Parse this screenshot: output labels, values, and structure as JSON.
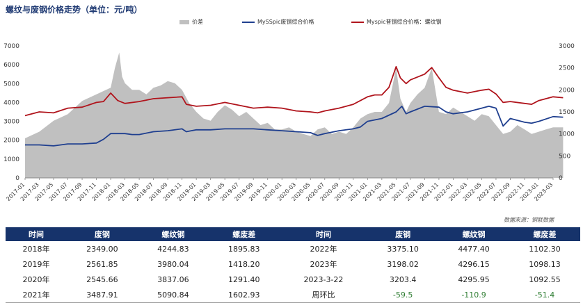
{
  "title": "螺纹与废钢价格走势（单位：元/吨）",
  "legend": [
    {
      "label": "价差",
      "color": "#c0c0c0",
      "kind": "area"
    },
    {
      "label": "MySSpic废钢综合价格",
      "color": "#1f3f8f",
      "kind": "line"
    },
    {
      "label": "Myspic普钢综合价格：螺纹钢",
      "color": "#b0141c",
      "kind": "line"
    }
  ],
  "source": "数据来源：钢联数据",
  "chart_data": {
    "type": "line",
    "x_tick_labels": [
      "2017-01",
      "2017-03",
      "2017-05",
      "2017-07",
      "2017-09",
      "2017-11",
      "2018-01",
      "2018-03",
      "2018-05",
      "2018-07",
      "2018-09",
      "2018-11",
      "2019-01",
      "2019-03",
      "2019-05",
      "2019-07",
      "2019-09",
      "2019-11",
      "2020-01",
      "2020-03",
      "2020-05",
      "2020-07",
      "2020-09",
      "2020-11",
      "2021-01",
      "2021-03",
      "2021-05",
      "2021-07",
      "2021-09",
      "2021-11",
      "2022-01",
      "2022-03",
      "2022-05",
      "2022-07",
      "2022-09",
      "2022-11",
      "2023-01",
      "2023-03"
    ],
    "left_axis": {
      "min": 0,
      "max": 7000,
      "ticks": [
        0,
        1000,
        2000,
        3000,
        4000,
        5000,
        6000,
        7000
      ]
    },
    "right_axis": {
      "min": 0,
      "max": 3000,
      "ticks": [
        0,
        500,
        1000,
        1500,
        2000,
        2500,
        3000
      ]
    },
    "grid": false,
    "series": [
      {
        "name": "价差",
        "type": "area",
        "axis": "right",
        "color": "#c0c0c0",
        "points": [
          [
            0,
            900
          ],
          [
            1,
            1050
          ],
          [
            2,
            1300
          ],
          [
            3,
            1450
          ],
          [
            4,
            1750
          ],
          [
            5,
            1900
          ],
          [
            6,
            2050
          ],
          [
            6.3,
            2500
          ],
          [
            6.6,
            2850
          ],
          [
            6.8,
            2300
          ],
          [
            7,
            2150
          ],
          [
            7.5,
            2000
          ],
          [
            8,
            2000
          ],
          [
            8.5,
            1900
          ],
          [
            9,
            2050
          ],
          [
            9.5,
            2100
          ],
          [
            10,
            2200
          ],
          [
            10.5,
            2150
          ],
          [
            11,
            2000
          ],
          [
            11.5,
            1700
          ],
          [
            12,
            1500
          ],
          [
            12.5,
            1350
          ],
          [
            13,
            1300
          ],
          [
            13.5,
            1500
          ],
          [
            14,
            1650
          ],
          [
            14.5,
            1550
          ],
          [
            15,
            1400
          ],
          [
            15.5,
            1500
          ],
          [
            16,
            1350
          ],
          [
            16.5,
            1200
          ],
          [
            17,
            1250
          ],
          [
            17.5,
            1100
          ],
          [
            18,
            1100
          ],
          [
            18.5,
            1150
          ],
          [
            19,
            1050
          ],
          [
            19.5,
            1000
          ],
          [
            20,
            950
          ],
          [
            20.5,
            1100
          ],
          [
            21,
            1150
          ],
          [
            21.5,
            1000
          ],
          [
            22,
            1050
          ],
          [
            22.5,
            1000
          ],
          [
            23,
            1150
          ],
          [
            23.5,
            1350
          ],
          [
            24,
            1450
          ],
          [
            24.5,
            1500
          ],
          [
            25,
            1500
          ],
          [
            25.5,
            1700
          ],
          [
            26,
            2500
          ],
          [
            26.3,
            1800
          ],
          [
            26.7,
            1500
          ],
          [
            27,
            1700
          ],
          [
            27.5,
            1900
          ],
          [
            28,
            2050
          ],
          [
            28.5,
            2500
          ],
          [
            29,
            1500
          ],
          [
            29.5,
            1450
          ],
          [
            30,
            1600
          ],
          [
            30.5,
            1500
          ],
          [
            31,
            1400
          ],
          [
            31.5,
            1300
          ],
          [
            32,
            1450
          ],
          [
            32.5,
            1400
          ],
          [
            33,
            1200
          ],
          [
            33.5,
            1000
          ],
          [
            34,
            1050
          ],
          [
            34.5,
            1200
          ],
          [
            35,
            1100
          ],
          [
            35.5,
            1000
          ],
          [
            36,
            1050
          ],
          [
            36.5,
            1100
          ],
          [
            37,
            1150
          ],
          [
            37.7,
            1150
          ]
        ]
      },
      {
        "name": "MySSpic废钢综合价格",
        "type": "line",
        "axis": "left",
        "color": "#1f3f8f",
        "points": [
          [
            0,
            1750
          ],
          [
            1,
            1750
          ],
          [
            2,
            1700
          ],
          [
            3,
            1800
          ],
          [
            4,
            1800
          ],
          [
            5,
            1850
          ],
          [
            5.5,
            2050
          ],
          [
            6,
            2350
          ],
          [
            7,
            2350
          ],
          [
            7.5,
            2300
          ],
          [
            8,
            2300
          ],
          [
            9,
            2450
          ],
          [
            10,
            2500
          ],
          [
            11,
            2600
          ],
          [
            11.3,
            2450
          ],
          [
            12,
            2550
          ],
          [
            13,
            2550
          ],
          [
            14,
            2600
          ],
          [
            15,
            2600
          ],
          [
            16,
            2600
          ],
          [
            17,
            2550
          ],
          [
            18,
            2500
          ],
          [
            19,
            2450
          ],
          [
            20,
            2400
          ],
          [
            20.5,
            2250
          ],
          [
            21,
            2350
          ],
          [
            22,
            2500
          ],
          [
            23,
            2600
          ],
          [
            23.5,
            2700
          ],
          [
            24,
            3000
          ],
          [
            25,
            3150
          ],
          [
            26,
            3500
          ],
          [
            26.4,
            3800
          ],
          [
            26.7,
            3400
          ],
          [
            27,
            3500
          ],
          [
            28,
            3800
          ],
          [
            29,
            3750
          ],
          [
            29.5,
            3500
          ],
          [
            30,
            3400
          ],
          [
            31,
            3500
          ],
          [
            32,
            3700
          ],
          [
            32.5,
            3800
          ],
          [
            33,
            3700
          ],
          [
            33.5,
            2750
          ],
          [
            34,
            3150
          ],
          [
            35,
            2950
          ],
          [
            35.5,
            2900
          ],
          [
            36,
            3000
          ],
          [
            37,
            3250
          ],
          [
            37.7,
            3220
          ]
        ]
      },
      {
        "name": "Myspic普钢综合价格：螺纹钢",
        "type": "line",
        "axis": "left",
        "color": "#b0141c",
        "points": [
          [
            0,
            3300
          ],
          [
            1,
            3500
          ],
          [
            2,
            3450
          ],
          [
            3,
            3700
          ],
          [
            4,
            3750
          ],
          [
            5,
            4000
          ],
          [
            5.5,
            4050
          ],
          [
            6,
            4500
          ],
          [
            6.5,
            4100
          ],
          [
            7,
            3950
          ],
          [
            8,
            4050
          ],
          [
            9,
            4200
          ],
          [
            10,
            4250
          ],
          [
            11,
            4300
          ],
          [
            11.3,
            3900
          ],
          [
            12,
            3800
          ],
          [
            13,
            3850
          ],
          [
            14,
            4000
          ],
          [
            15,
            3850
          ],
          [
            16,
            3700
          ],
          [
            17,
            3750
          ],
          [
            18,
            3700
          ],
          [
            19,
            3550
          ],
          [
            20,
            3500
          ],
          [
            20.5,
            3450
          ],
          [
            21,
            3550
          ],
          [
            22,
            3700
          ],
          [
            23,
            3900
          ],
          [
            24,
            4300
          ],
          [
            24.5,
            4400
          ],
          [
            25,
            4400
          ],
          [
            25.5,
            4800
          ],
          [
            26,
            5900
          ],
          [
            26.3,
            5300
          ],
          [
            26.7,
            5000
          ],
          [
            27,
            5200
          ],
          [
            28,
            5500
          ],
          [
            28.5,
            5850
          ],
          [
            29,
            5300
          ],
          [
            29.5,
            4800
          ],
          [
            30,
            4650
          ],
          [
            31,
            4500
          ],
          [
            32,
            4650
          ],
          [
            32.5,
            4700
          ],
          [
            33,
            4450
          ],
          [
            33.5,
            4000
          ],
          [
            34,
            4050
          ],
          [
            35,
            3950
          ],
          [
            35.5,
            3900
          ],
          [
            36,
            4100
          ],
          [
            37,
            4300
          ],
          [
            37.7,
            4250
          ]
        ]
      }
    ]
  },
  "table": {
    "headers": [
      "时间",
      "废钢",
      "螺纹钢",
      "螺废差",
      "时间",
      "废钢",
      "螺纹钢",
      "螺废差"
    ],
    "rows": [
      [
        "2018年",
        "2349.00",
        "4244.83",
        "1895.83",
        "2022年",
        "3375.10",
        "4477.40",
        "1102.30"
      ],
      [
        "2019年",
        "2561.85",
        "3980.04",
        "1418.20",
        "2023年",
        "3198.02",
        "4296.15",
        "1098.13"
      ],
      [
        "2020年",
        "2545.66",
        "3837.06",
        "1291.40",
        "2023-3-22",
        "3203.4",
        "4295.95",
        "1092.55"
      ],
      [
        "2021年",
        "3487.91",
        "5090.84",
        "1602.93",
        "周环比",
        "-59.5",
        "-110.9",
        "-51.4"
      ]
    ]
  }
}
